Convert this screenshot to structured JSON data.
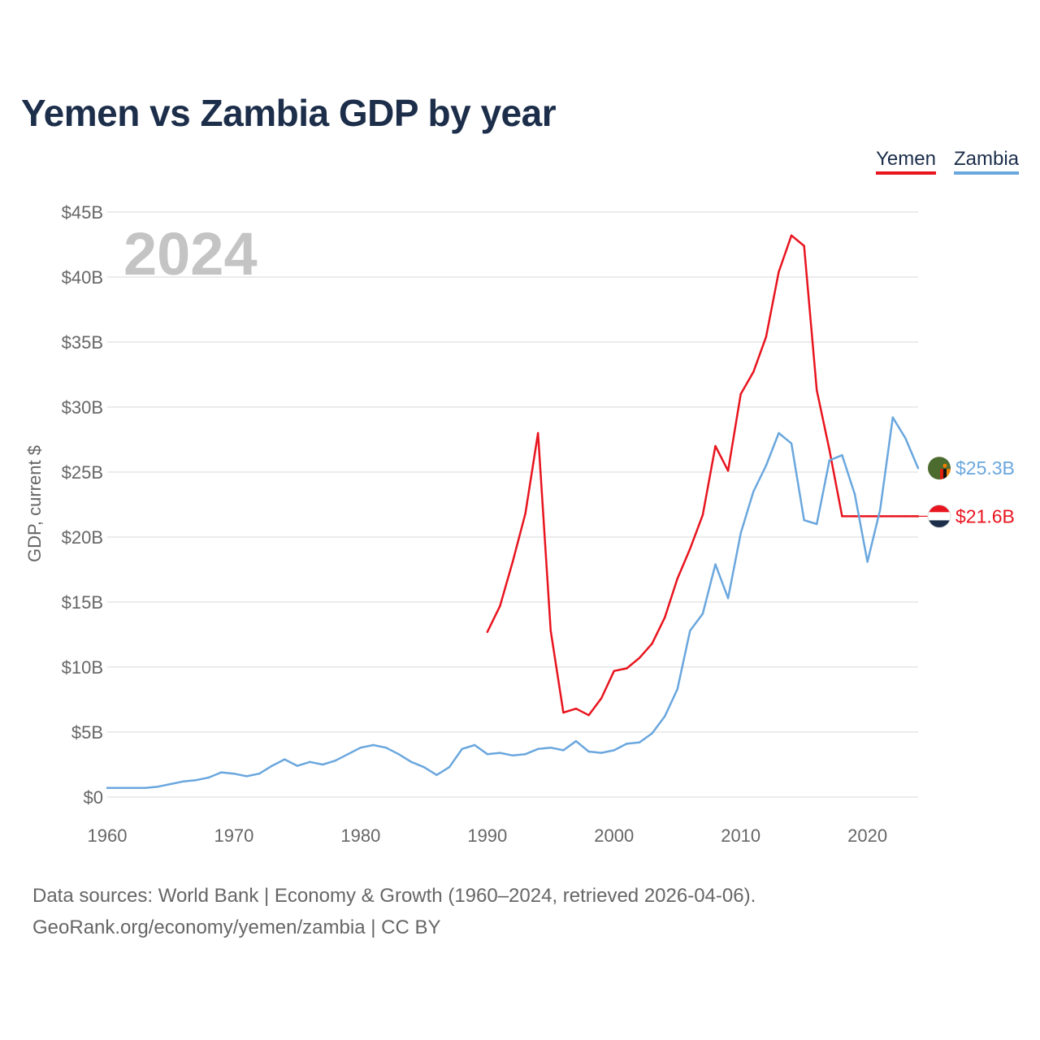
{
  "chart_data": {
    "type": "line",
    "title": "Yemen vs Zambia GDP by year",
    "ylabel": "GDP, current $",
    "xlabel": "",
    "year_label": "2024",
    "xlim": [
      1960,
      2024
    ],
    "ylim": [
      0,
      45
    ],
    "x_ticks": [
      1960,
      1970,
      1980,
      1990,
      2000,
      2010,
      2020
    ],
    "y_ticks": [
      0,
      5,
      10,
      15,
      20,
      25,
      30,
      35,
      40,
      45
    ],
    "y_tick_labels": [
      "$0",
      "$5B",
      "$10B",
      "$15B",
      "$20B",
      "$25B",
      "$30B",
      "$35B",
      "$40B",
      "$45B"
    ],
    "legend": [
      "Yemen",
      "Zambia"
    ],
    "series": [
      {
        "name": "Yemen",
        "color": "#e8141e",
        "end_label": "$21.6B",
        "x": [
          1990,
          1991,
          1992,
          1993,
          1994,
          1995,
          1996,
          1997,
          1998,
          1999,
          2000,
          2001,
          2002,
          2003,
          2004,
          2005,
          2006,
          2007,
          2008,
          2009,
          2010,
          2011,
          2012,
          2013,
          2014,
          2015,
          2016,
          2017,
          2018,
          2019,
          2020,
          2021,
          2022,
          2023,
          2024
        ],
        "values": [
          12.7,
          14.7,
          18.1,
          21.8,
          28.0,
          12.8,
          6.5,
          6.8,
          6.3,
          7.6,
          9.7,
          9.9,
          10.7,
          11.8,
          13.8,
          16.8,
          19.1,
          21.7,
          27.0,
          25.1,
          31.0,
          32.7,
          35.4,
          40.4,
          43.2,
          42.4,
          31.3,
          26.7,
          21.6,
          21.6,
          21.6,
          21.6,
          21.6,
          21.6,
          21.6
        ]
      },
      {
        "name": "Zambia",
        "color": "#6aa7de",
        "end_label": "$25.3B",
        "x": [
          1960,
          1961,
          1962,
          1963,
          1964,
          1965,
          1966,
          1967,
          1968,
          1969,
          1970,
          1971,
          1972,
          1973,
          1974,
          1975,
          1976,
          1977,
          1978,
          1979,
          1980,
          1981,
          1982,
          1983,
          1984,
          1985,
          1986,
          1987,
          1988,
          1989,
          1990,
          1991,
          1992,
          1993,
          1994,
          1995,
          1996,
          1997,
          1998,
          1999,
          2000,
          2001,
          2002,
          2003,
          2004,
          2005,
          2006,
          2007,
          2008,
          2009,
          2010,
          2011,
          2012,
          2013,
          2014,
          2015,
          2016,
          2017,
          2018,
          2019,
          2020,
          2021,
          2022,
          2023,
          2024
        ],
        "values": [
          0.7,
          0.7,
          0.7,
          0.7,
          0.8,
          1.0,
          1.2,
          1.3,
          1.5,
          1.9,
          1.8,
          1.6,
          1.8,
          2.4,
          2.9,
          2.4,
          2.7,
          2.5,
          2.8,
          3.3,
          3.8,
          4.0,
          3.8,
          3.3,
          2.7,
          2.3,
          1.7,
          2.3,
          3.7,
          4.0,
          3.3,
          3.4,
          3.2,
          3.3,
          3.7,
          3.8,
          3.6,
          4.3,
          3.5,
          3.4,
          3.6,
          4.1,
          4.2,
          4.9,
          6.2,
          8.3,
          12.8,
          14.1,
          17.9,
          15.3,
          20.3,
          23.5,
          25.5,
          28.0,
          27.2,
          21.3,
          21.0,
          25.9,
          26.3,
          23.3,
          18.1,
          22.1,
          29.2,
          27.6,
          25.3
        ]
      }
    ]
  },
  "footer": {
    "line1": "Data sources: World Bank | Economy & Growth (1960–2024, retrieved 2026-04-06).",
    "line2": "GeoRank.org/economy/yemen/zambia | CC BY"
  }
}
